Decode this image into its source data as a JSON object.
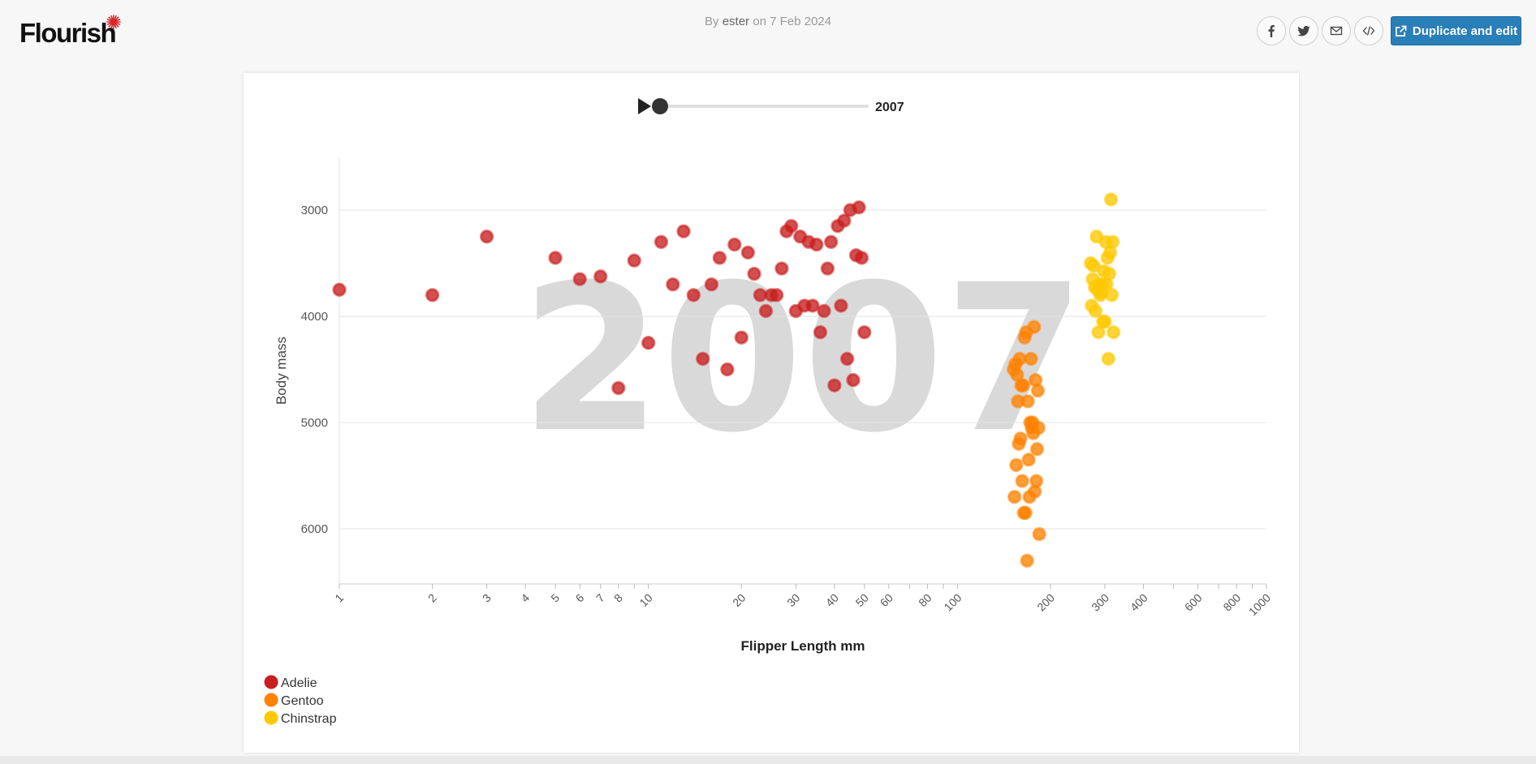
{
  "header": {
    "logo_text": "Flourish",
    "by_prefix": "By",
    "author": "ester",
    "on_text": "on 7 Feb 2024",
    "duplicate_label": "Duplicate and edit",
    "share_icons": [
      "facebook-icon",
      "twitter-icon",
      "email-icon",
      "embed-code-icon"
    ]
  },
  "colors": {
    "accent": "#2a7fb8",
    "logo_star": "#d62728",
    "adelie": "#c81e1e",
    "gentoo": "#ff8200",
    "chinstrap": "#ffc800",
    "watermark": "#d9d9d9"
  },
  "chart_data": {
    "type": "scatter",
    "xlabel": "Flipper Length mm",
    "ylabel": "Body mass",
    "xscale": "log",
    "xlim": [
      1,
      1000
    ],
    "yscale": "linear",
    "yaxis_inverted": true,
    "ylim": [
      2500,
      6500
    ],
    "grid": "horizontal",
    "legend_position": "bottom-left",
    "x_ticks": [
      1,
      2,
      3,
      4,
      5,
      6,
      7,
      8,
      10,
      20,
      30,
      40,
      50,
      60,
      80,
      100,
      200,
      300,
      400,
      600,
      800,
      1000
    ],
    "x_ticks_unlabeled": [
      9,
      70,
      90,
      500,
      700,
      900
    ],
    "y_ticks": [
      3000,
      4000,
      5000,
      6000
    ],
    "time_slider": {
      "current": "2007",
      "fraction": 0.0
    },
    "watermark": "2007",
    "series": [
      {
        "name": "Adelie",
        "color": "#c81e1e",
        "points": [
          [
            1,
            3750
          ],
          [
            2,
            3800
          ],
          [
            3,
            3250
          ],
          [
            5,
            3450
          ],
          [
            6,
            3650
          ],
          [
            7,
            3625
          ],
          [
            8,
            4675
          ],
          [
            9,
            3475
          ],
          [
            10,
            4250
          ],
          [
            11,
            3300
          ],
          [
            12,
            3700
          ],
          [
            13,
            3200
          ],
          [
            14,
            3800
          ],
          [
            15,
            4400
          ],
          [
            16,
            3700
          ],
          [
            17,
            3450
          ],
          [
            18,
            4500
          ],
          [
            19,
            3325
          ],
          [
            20,
            4200
          ],
          [
            21,
            3400
          ],
          [
            22,
            3600
          ],
          [
            23,
            3800
          ],
          [
            24,
            3950
          ],
          [
            25,
            3800
          ],
          [
            26,
            3800
          ],
          [
            27,
            3550
          ],
          [
            28,
            3200
          ],
          [
            29,
            3150
          ],
          [
            30,
            3950
          ],
          [
            31,
            3250
          ],
          [
            32,
            3900
          ],
          [
            33,
            3300
          ],
          [
            34,
            3900
          ],
          [
            35,
            3325
          ],
          [
            36,
            4150
          ],
          [
            37,
            3950
          ],
          [
            38,
            3550
          ],
          [
            39,
            3300
          ],
          [
            40,
            4650
          ],
          [
            41,
            3150
          ],
          [
            42,
            3900
          ],
          [
            43,
            3100
          ],
          [
            44,
            4400
          ],
          [
            45,
            3000
          ],
          [
            46,
            4600
          ],
          [
            47,
            3425
          ],
          [
            48,
            2975
          ],
          [
            49,
            3450
          ],
          [
            50,
            4150
          ]
        ]
      },
      {
        "name": "Gentoo",
        "color": "#ff8200",
        "points": [
          [
            152,
            4500
          ],
          [
            153,
            5700
          ],
          [
            154,
            4450
          ],
          [
            155,
            5400
          ],
          [
            156,
            4550
          ],
          [
            157,
            4800
          ],
          [
            158,
            5200
          ],
          [
            159,
            4400
          ],
          [
            160,
            5150
          ],
          [
            161,
            4650
          ],
          [
            162,
            5550
          ],
          [
            163,
            4650
          ],
          [
            164,
            5850
          ],
          [
            165,
            4200
          ],
          [
            166,
            5850
          ],
          [
            167,
            4150
          ],
          [
            168,
            6300
          ],
          [
            169,
            4800
          ],
          [
            170,
            5350
          ],
          [
            171,
            5700
          ],
          [
            172,
            5000
          ],
          [
            173,
            4400
          ],
          [
            174,
            5050
          ],
          [
            175,
            5000
          ],
          [
            176,
            5100
          ],
          [
            177,
            4100
          ],
          [
            178,
            5650
          ],
          [
            179,
            4600
          ],
          [
            180,
            5550
          ],
          [
            181,
            5250
          ],
          [
            182,
            4700
          ],
          [
            183,
            5050
          ],
          [
            184,
            6050
          ]
        ]
      },
      {
        "name": "Chinstrap",
        "color": "#ffc800",
        "points": [
          [
            270,
            3500
          ],
          [
            272,
            3900
          ],
          [
            274,
            3650
          ],
          [
            276,
            3525
          ],
          [
            278,
            3725
          ],
          [
            280,
            3950
          ],
          [
            282,
            3250
          ],
          [
            284,
            3750
          ],
          [
            286,
            4150
          ],
          [
            288,
            3700
          ],
          [
            290,
            3800
          ],
          [
            292,
            3775
          ],
          [
            294,
            3700
          ],
          [
            296,
            4050
          ],
          [
            298,
            3575
          ],
          [
            300,
            4050
          ],
          [
            302,
            3300
          ],
          [
            304,
            3700
          ],
          [
            306,
            3450
          ],
          [
            308,
            4400
          ],
          [
            310,
            3600
          ],
          [
            312,
            3400
          ],
          [
            314,
            2900
          ],
          [
            316,
            3800
          ],
          [
            318,
            3300
          ],
          [
            320,
            4150
          ]
        ]
      }
    ]
  }
}
